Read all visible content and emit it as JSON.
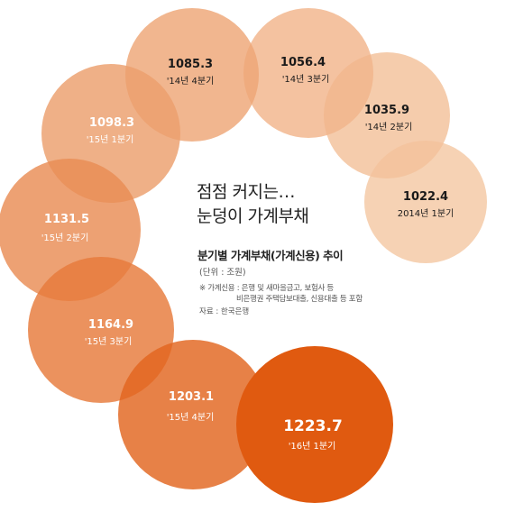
{
  "title_lines": [
    "점점 커지는…",
    "눈덩이 가계부채"
  ],
  "subtitle": "분기별 가계부채(가계신용) 추이",
  "unit": "(단위 : 조원)",
  "note_lines": [
    "※ 가계신용 : 은행 및 새마을금고, 보험사 등",
    "비은행권 주택담보대출, 신용대출 등 포함"
  ],
  "source": "자료 : 한국은행",
  "colors": {
    "lightest": "#f4c8a4",
    "darkest": "#e05a10",
    "text_light": "#1a1a1a",
    "text_dark": "#ffffff"
  },
  "chart_data": {
    "type": "bubble",
    "series": [
      {
        "values": [
          1022.4,
          1035.9,
          1056.4,
          1085.3,
          1098.3,
          1131.5,
          1164.9,
          1203.1,
          1223.7
        ],
        "labels": [
          "2014년 1분기",
          "'14년 2분기",
          "'14년 3분기",
          "'14년 4분기",
          "'15년 1분기",
          "'15년 2분기",
          "'15년 3분기",
          "'15년 4분기",
          "'16년 1분기"
        ]
      }
    ],
    "value_labels": [
      "1022.4",
      "1035.9",
      "1056.4",
      "1085.3",
      "1098.3",
      "1131.5",
      "1164.9",
      "1203.1",
      "1223.7"
    ]
  }
}
